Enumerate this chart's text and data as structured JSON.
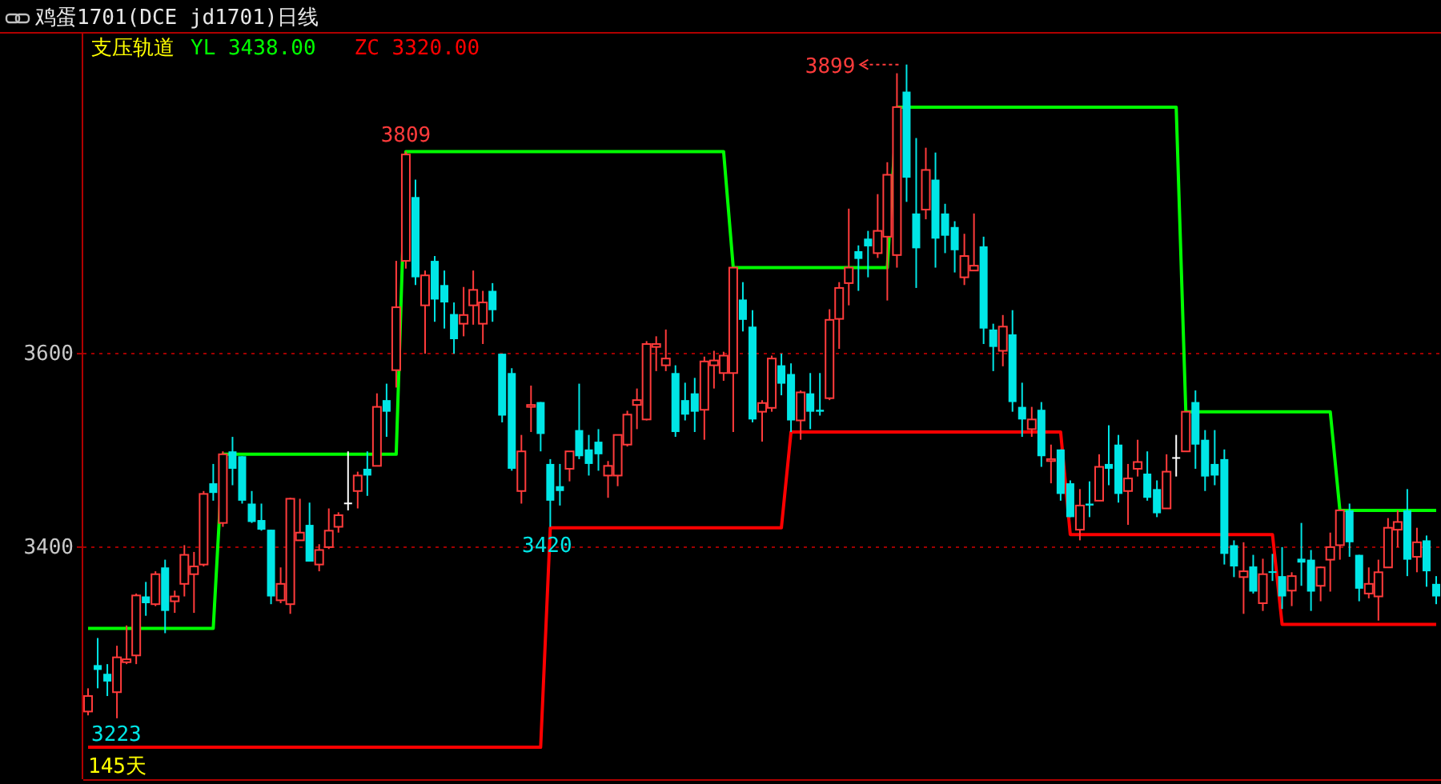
{
  "chart_data": {
    "type": "candlestick",
    "title": "鸡蛋1701(DCE jd1701)日线",
    "legend_title": "支压轨道",
    "legend": "top left",
    "grid": "y",
    "tick_labels": "y",
    "ylim": [
      3160,
      3931
    ],
    "yticks": [
      3400,
      3600
    ],
    "categories": [
      null,
      null,
      null,
      null,
      null,
      null,
      null,
      null,
      null,
      null,
      null,
      null,
      null,
      null,
      null,
      null,
      null,
      null,
      null,
      null,
      null,
      null,
      null,
      null,
      null,
      null,
      null,
      null,
      null,
      null,
      null,
      null,
      null,
      null,
      null,
      null,
      null,
      null,
      null,
      null,
      null,
      null,
      null,
      null,
      null,
      null,
      null,
      null,
      null,
      null,
      null,
      null,
      null,
      null,
      null,
      null,
      null,
      null,
      null,
      null,
      null,
      null,
      null,
      null,
      null,
      null,
      null,
      null,
      null,
      null,
      null,
      null,
      null,
      null,
      null,
      null,
      null,
      null,
      null,
      null,
      null,
      null,
      null,
      null,
      null,
      null,
      null,
      null,
      null,
      null,
      null,
      null,
      null,
      null,
      null,
      null,
      null,
      null,
      null,
      null,
      null,
      null,
      null,
      null,
      null,
      null,
      null,
      null,
      null,
      null,
      null,
      null,
      null,
      null,
      null,
      null,
      null,
      null,
      null,
      null,
      null,
      null,
      null,
      null,
      null,
      null,
      null,
      null,
      null,
      null,
      null,
      null,
      null,
      null,
      null,
      null,
      null,
      null,
      null,
      null,
      null
    ],
    "ohlc": [
      [
        3230,
        3254,
        3226,
        3246
      ],
      [
        3278,
        3306,
        3254,
        3273
      ],
      [
        3269,
        3279,
        3246,
        3261
      ],
      [
        3250,
        3298,
        3223,
        3286
      ],
      [
        3281,
        3319,
        3279,
        3284
      ],
      [
        3288,
        3352,
        3279,
        3350
      ],
      [
        3349,
        3364,
        3329,
        3342
      ],
      [
        3341,
        3375,
        3339,
        3372
      ],
      [
        3379,
        3387,
        3311,
        3334
      ],
      [
        3344,
        3355,
        3332,
        3349
      ],
      [
        3362,
        3402,
        3349,
        3392
      ],
      [
        3372,
        3395,
        3332,
        3380
      ],
      [
        3382,
        3458,
        3380,
        3455
      ],
      [
        3466,
        3486,
        3448,
        3456
      ],
      [
        3425,
        3499,
        3421,
        3496
      ],
      [
        3499,
        3514,
        3464,
        3481
      ],
      [
        3494,
        3494,
        3445,
        3448
      ],
      [
        3445,
        3458,
        3425,
        3426
      ],
      [
        3428,
        3445,
        3417,
        3418
      ],
      [
        3418,
        3418,
        3341,
        3349
      ],
      [
        3345,
        3379,
        3342,
        3362
      ],
      [
        3341,
        3451,
        3331,
        3450
      ],
      [
        3407,
        3450,
        3407,
        3415
      ],
      [
        3423,
        3446,
        3385,
        3385
      ],
      [
        3382,
        3403,
        3375,
        3397
      ],
      [
        3400,
        3440,
        3398,
        3417
      ],
      [
        3421,
        3436,
        3415,
        3433
      ],
      [
        3446,
        3499,
        3438,
        3446
      ],
      [
        3458,
        3478,
        3440,
        3474
      ],
      [
        3481,
        3499,
        3453,
        3474
      ],
      [
        3484,
        3559,
        3484,
        3545
      ],
      [
        3552,
        3569,
        3514,
        3540
      ],
      [
        3583,
        3696,
        3565,
        3648
      ],
      [
        3696,
        3809,
        3688,
        3806
      ],
      [
        3762,
        3780,
        3671,
        3679
      ],
      [
        3650,
        3686,
        3600,
        3681
      ],
      [
        3696,
        3701,
        3633,
        3656
      ],
      [
        3671,
        3686,
        3626,
        3653
      ],
      [
        3641,
        3653,
        3600,
        3615
      ],
      [
        3631,
        3669,
        3618,
        3640
      ],
      [
        3650,
        3686,
        3630,
        3666
      ],
      [
        3631,
        3665,
        3610,
        3653
      ],
      [
        3665,
        3673,
        3633,
        3645
      ],
      [
        3600,
        3600,
        3529,
        3536
      ],
      [
        3580,
        3585,
        3479,
        3481
      ],
      [
        3458,
        3516,
        3445,
        3499
      ],
      [
        3545,
        3567,
        3519,
        3547
      ],
      [
        3550,
        3550,
        3499,
        3517
      ],
      [
        3486,
        3491,
        3421,
        3448
      ],
      [
        3463,
        3486,
        3443,
        3458
      ],
      [
        3481,
        3499,
        3468,
        3499
      ],
      [
        3521,
        3569,
        3491,
        3494
      ],
      [
        3501,
        3516,
        3474,
        3486
      ],
      [
        3509,
        3522,
        3479,
        3496
      ],
      [
        3474,
        3489,
        3451,
        3484
      ],
      [
        3474,
        3516,
        3463,
        3516
      ],
      [
        3506,
        3541,
        3504,
        3537
      ],
      [
        3547,
        3564,
        3522,
        3552
      ],
      [
        3532,
        3613,
        3531,
        3610
      ],
      [
        3607,
        3618,
        3582,
        3610
      ],
      [
        3588,
        3625,
        3582,
        3595
      ],
      [
        3580,
        3588,
        3514,
        3519
      ],
      [
        3552,
        3570,
        3531,
        3537
      ],
      [
        3559,
        3575,
        3519,
        3540
      ],
      [
        3542,
        3597,
        3511,
        3592
      ],
      [
        3588,
        3603,
        3564,
        3593
      ],
      [
        3580,
        3602,
        3572,
        3598
      ],
      [
        3580,
        3689,
        3519,
        3689
      ],
      [
        3656,
        3674,
        3623,
        3635
      ],
      [
        3628,
        3645,
        3529,
        3532
      ],
      [
        3540,
        3552,
        3509,
        3549
      ],
      [
        3544,
        3598,
        3540,
        3595
      ],
      [
        3588,
        3600,
        3557,
        3569
      ],
      [
        3579,
        3590,
        3519,
        3531
      ],
      [
        3531,
        3562,
        3511,
        3560
      ],
      [
        3559,
        3580,
        3522,
        3540
      ],
      [
        3542,
        3580,
        3536,
        3540
      ],
      [
        3554,
        3646,
        3552,
        3635
      ],
      [
        3636,
        3674,
        3605,
        3668
      ],
      [
        3673,
        3750,
        3650,
        3689
      ],
      [
        3706,
        3712,
        3665,
        3698
      ],
      [
        3719,
        3727,
        3679,
        3711
      ],
      [
        3704,
        3765,
        3699,
        3727
      ],
      [
        3721,
        3798,
        3655,
        3785
      ],
      [
        3702,
        3890,
        3689,
        3855
      ],
      [
        3871,
        3899,
        3757,
        3782
      ],
      [
        3745,
        3823,
        3668,
        3709
      ],
      [
        3749,
        3813,
        3739,
        3790
      ],
      [
        3780,
        3808,
        3689,
        3719
      ],
      [
        3745,
        3755,
        3704,
        3722
      ],
      [
        3731,
        3737,
        3684,
        3707
      ],
      [
        3679,
        3724,
        3671,
        3701
      ],
      [
        3686,
        3745,
        3686,
        3691
      ],
      [
        3711,
        3721,
        3610,
        3626
      ],
      [
        3625,
        3631,
        3582,
        3607
      ],
      [
        3603,
        3640,
        3587,
        3628
      ],
      [
        3620,
        3645,
        3540,
        3550
      ],
      [
        3545,
        3570,
        3514,
        3532
      ],
      [
        3522,
        3545,
        3514,
        3532
      ],
      [
        3542,
        3550,
        3483,
        3494
      ],
      [
        3489,
        3506,
        3466,
        3491
      ],
      [
        3501,
        3501,
        3448,
        3455
      ],
      [
        3466,
        3469,
        3431,
        3431
      ],
      [
        3418,
        3460,
        3407,
        3443
      ],
      [
        3445,
        3468,
        3431,
        3443
      ],
      [
        3448,
        3496,
        3448,
        3483
      ],
      [
        3486,
        3526,
        3464,
        3481
      ],
      [
        3506,
        3516,
        3446,
        3455
      ],
      [
        3458,
        3486,
        3423,
        3471
      ],
      [
        3481,
        3511,
        3473,
        3488
      ],
      [
        3476,
        3499,
        3448,
        3451
      ],
      [
        3460,
        3469,
        3431,
        3435
      ],
      [
        3440,
        3496,
        3440,
        3478
      ],
      [
        3493,
        3516,
        3473,
        3493
      ],
      [
        3499,
        3540,
        3499,
        3540
      ],
      [
        3550,
        3562,
        3481,
        3506
      ],
      [
        3511,
        3521,
        3458,
        3473
      ],
      [
        3486,
        3521,
        3464,
        3474
      ],
      [
        3491,
        3501,
        3382,
        3393
      ],
      [
        3402,
        3407,
        3369,
        3380
      ],
      [
        3369,
        3405,
        3331,
        3375
      ],
      [
        3380,
        3392,
        3352,
        3354
      ],
      [
        3342,
        3388,
        3334,
        3372
      ],
      [
        3375,
        3393,
        3365,
        3374
      ],
      [
        3370,
        3400,
        3336,
        3349
      ],
      [
        3355,
        3374,
        3339,
        3370
      ],
      [
        3388,
        3425,
        3360,
        3384
      ],
      [
        3387,
        3397,
        3334,
        3354
      ],
      [
        3360,
        3380,
        3344,
        3379
      ],
      [
        3387,
        3415,
        3354,
        3400
      ],
      [
        3402,
        3438,
        3387,
        3438
      ],
      [
        3438,
        3445,
        3390,
        3405
      ],
      [
        3392,
        3392,
        3344,
        3357
      ],
      [
        3352,
        3379,
        3347,
        3362
      ],
      [
        3349,
        3387,
        3324,
        3374
      ],
      [
        3379,
        3430,
        3379,
        3420
      ],
      [
        3418,
        3438,
        3400,
        3426
      ],
      [
        3438,
        3460,
        3370,
        3387
      ],
      [
        3390,
        3420,
        3374,
        3405
      ],
      [
        3407,
        3412,
        3359,
        3375
      ],
      [
        3362,
        3370,
        3341,
        3349
      ]
    ],
    "series": [
      {
        "name": "YL 3438.00",
        "type": "line",
        "color": "#00ff00",
        "values": [
          3316,
          3316,
          3316,
          3316,
          3316,
          3316,
          3316,
          3316,
          3316,
          3316,
          3316,
          3316,
          3316,
          3316,
          3496,
          3496,
          3496,
          3496,
          3496,
          3496,
          3496,
          3496,
          3496,
          3496,
          3496,
          3496,
          3496,
          3496,
          3496,
          3496,
          3496,
          3496,
          3496,
          3809,
          3809,
          3809,
          3809,
          3809,
          3809,
          3809,
          3809,
          3809,
          3809,
          3809,
          3809,
          3809,
          3809,
          3809,
          3809,
          3809,
          3809,
          3809,
          3809,
          3809,
          3809,
          3809,
          3809,
          3809,
          3809,
          3809,
          3809,
          3809,
          3809,
          3809,
          3809,
          3809,
          3809,
          3689,
          3689,
          3689,
          3689,
          3689,
          3689,
          3689,
          3689,
          3689,
          3689,
          3689,
          3689,
          3689,
          3689,
          3689,
          3689,
          3689,
          3855,
          3855,
          3855,
          3855,
          3855,
          3855,
          3855,
          3855,
          3855,
          3855,
          3855,
          3855,
          3855,
          3855,
          3855,
          3855,
          3855,
          3855,
          3855,
          3855,
          3855,
          3855,
          3855,
          3855,
          3855,
          3855,
          3855,
          3855,
          3855,
          3855,
          3540,
          3540,
          3540,
          3540,
          3540,
          3540,
          3540,
          3540,
          3540,
          3540,
          3540,
          3540,
          3540,
          3540,
          3540,
          3540,
          3438,
          3438,
          3438,
          3438,
          3438,
          3438,
          3438,
          3438,
          3438,
          3438,
          3438
        ]
      },
      {
        "name": "ZC 3320.00",
        "type": "line",
        "color": "#ff0000",
        "values": [
          3193,
          3193,
          3193,
          3193,
          3193,
          3193,
          3193,
          3193,
          3193,
          3193,
          3193,
          3193,
          3193,
          3193,
          3193,
          3193,
          3193,
          3193,
          3193,
          3193,
          3193,
          3193,
          3193,
          3193,
          3193,
          3193,
          3193,
          3193,
          3193,
          3193,
          3193,
          3193,
          3193,
          3193,
          3193,
          3193,
          3193,
          3193,
          3193,
          3193,
          3193,
          3193,
          3193,
          3193,
          3193,
          3193,
          3193,
          3193,
          3420,
          3420,
          3420,
          3420,
          3420,
          3420,
          3420,
          3420,
          3420,
          3420,
          3420,
          3420,
          3420,
          3420,
          3420,
          3420,
          3420,
          3420,
          3420,
          3420,
          3420,
          3420,
          3420,
          3420,
          3420,
          3519,
          3519,
          3519,
          3519,
          3519,
          3519,
          3519,
          3519,
          3519,
          3519,
          3519,
          3519,
          3519,
          3519,
          3519,
          3519,
          3519,
          3519,
          3519,
          3519,
          3519,
          3519,
          3519,
          3519,
          3519,
          3519,
          3519,
          3519,
          3519,
          3413,
          3413,
          3413,
          3413,
          3413,
          3413,
          3413,
          3413,
          3413,
          3413,
          3413,
          3413,
          3413,
          3413,
          3413,
          3413,
          3413,
          3413,
          3413,
          3413,
          3413,
          3413,
          3320,
          3320,
          3320,
          3320,
          3320,
          3320,
          3320,
          3320,
          3320,
          3320,
          3320,
          3320,
          3320,
          3320,
          3320,
          3320,
          3320
        ]
      }
    ],
    "annotations": [
      {
        "text": "3809",
        "y": 3809
      },
      "3899",
      {
        "text": "3223",
        "y": 3223
      },
      {
        "text": "3420",
        "y": 3420
      },
      "145天"
    ]
  }
}
